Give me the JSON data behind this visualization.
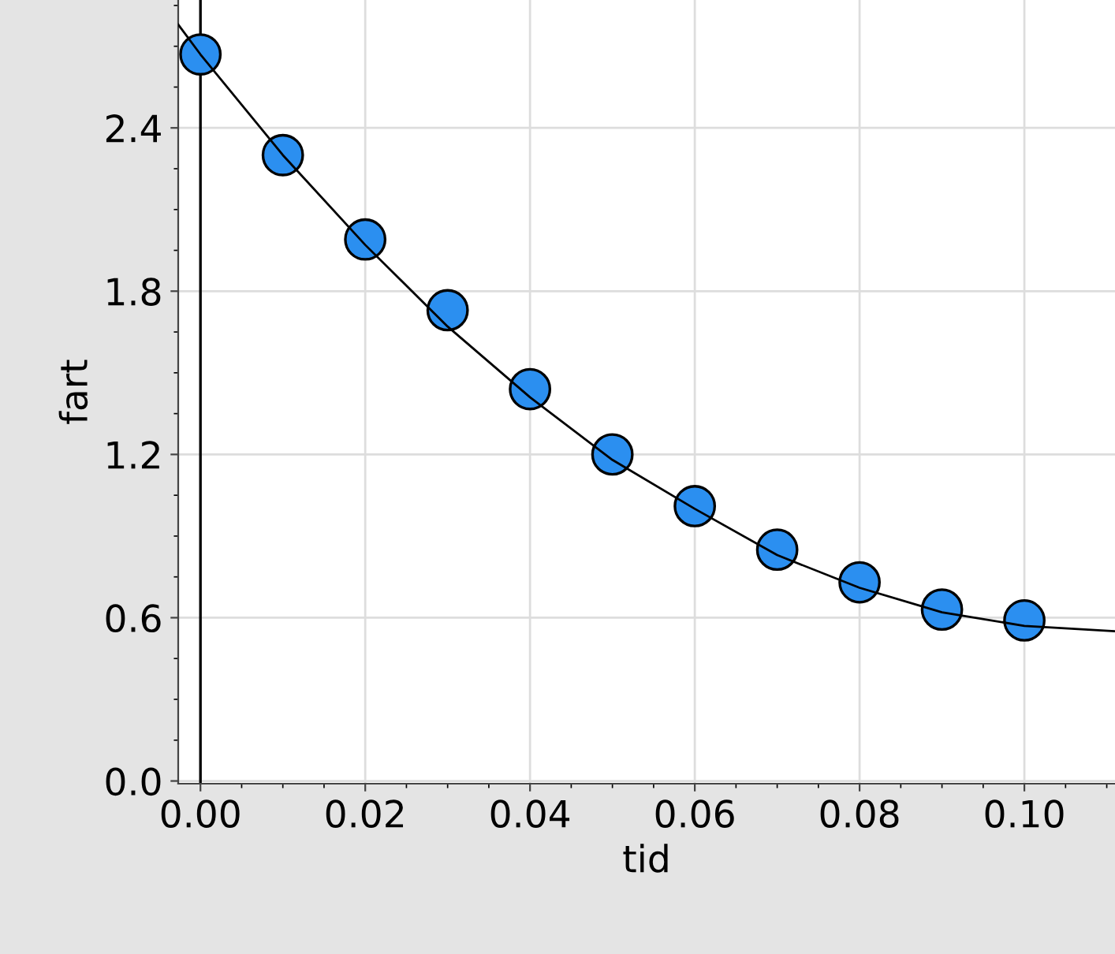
{
  "chart_data": {
    "type": "scatter",
    "xlabel": "tid",
    "ylabel": "fart",
    "xlim": [
      -0.0027,
      0.111
    ],
    "ylim": [
      -0.01,
      2.87
    ],
    "xticks": [
      {
        "value": 0,
        "label": "0.00"
      },
      {
        "value": 0.02,
        "label": "0.02"
      },
      {
        "value": 0.04,
        "label": "0.04"
      },
      {
        "value": 0.06,
        "label": "0.06"
      },
      {
        "value": 0.08,
        "label": "0.08"
      },
      {
        "value": 0.1,
        "label": "0.10"
      }
    ],
    "yticks": [
      {
        "value": 0,
        "label": "0.0"
      },
      {
        "value": 0.6,
        "label": "0.6"
      },
      {
        "value": 1.2,
        "label": "1.2"
      },
      {
        "value": 1.8,
        "label": "1.8"
      },
      {
        "value": 2.4,
        "label": "2.4"
      }
    ],
    "grid": true,
    "ref_lines": [
      {
        "axis": "x",
        "value": 0,
        "color": "#000000"
      }
    ],
    "x": [
      0,
      0.01,
      0.02,
      0.03,
      0.04,
      0.05,
      0.06,
      0.07,
      0.08,
      0.09,
      0.1
    ],
    "series": [
      {
        "marker": "circle",
        "color": "#2b8ff0",
        "values": [
          2.67,
          2.3,
          1.99,
          1.73,
          1.44,
          1.2,
          1.01,
          0.85,
          0.73,
          0.63,
          0.59
        ]
      },
      {
        "type": "line",
        "color": "#000000",
        "marker": "none",
        "x": [
          -0.0027,
          0,
          0.01,
          0.02,
          0.03,
          0.04,
          0.05,
          0.06,
          0.07,
          0.08,
          0.09,
          0.1,
          0.111
        ],
        "values": [
          2.78,
          2.67,
          2.3,
          1.97,
          1.67,
          1.41,
          1.18,
          1.0,
          0.83,
          0.71,
          0.62,
          0.57,
          0.55
        ]
      }
    ]
  }
}
